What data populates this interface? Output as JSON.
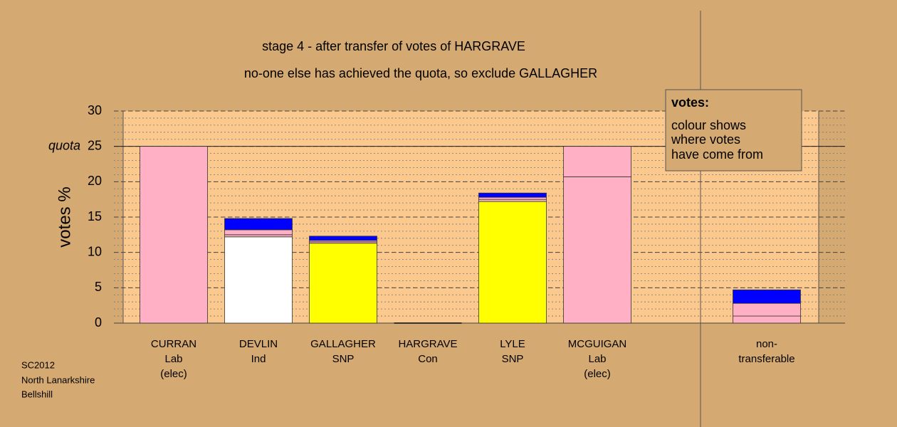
{
  "chart_data": {
    "type": "stacked_bar",
    "title": "stage 4 - after transfer of votes of HARGRAVE",
    "subtitle": "no-one else has achieved the quota, so exclude GALLAGHER",
    "y_label": "votes %",
    "categories": [
      [
        "CURRAN",
        "Lab",
        "(elec)"
      ],
      [
        "DEVLIN",
        "Ind"
      ],
      [
        "GALLAGHER",
        "SNP"
      ],
      [
        "HARGRAVE",
        "Con"
      ],
      [
        "LYLE",
        "SNP"
      ],
      [
        "MCGUIGAN",
        "Lab",
        "(elec)"
      ],
      null,
      [
        "non-",
        "transferable"
      ]
    ],
    "series": [
      {
        "colors": [
          "#ffb0c4",
          "#ffffff",
          "#ffff00",
          "#0000ff",
          "#ffff00",
          "#ffb0c4",
          null,
          "#ffb0c4"
        ],
        "values": [
          25,
          12.2,
          11.3,
          0,
          17.2,
          20.7,
          null,
          0
        ]
      },
      {
        "color": "#ffb0c4",
        "values": [
          0,
          0.3,
          0.2,
          0,
          0.3,
          4.3,
          null,
          1.0
        ]
      },
      {
        "color": "#ffb0c4",
        "values": [
          0,
          0.7,
          0.2,
          0,
          0.3,
          0,
          null,
          1.8
        ]
      },
      {
        "color": "#0000ff",
        "values": [
          0,
          1.6,
          0.6,
          0,
          0.6,
          0,
          null,
          1.9
        ]
      }
    ],
    "ylim": [
      0,
      30
    ],
    "yticks": [
      0,
      5,
      10,
      15,
      20,
      25,
      30
    ],
    "minor_grid_step": 1,
    "quota": {
      "label": "quota",
      "value": 25
    },
    "note": {
      "heading": "votes:",
      "lines": [
        "colour shows",
        "where votes",
        "have come from"
      ]
    },
    "footer": [
      "SC2012",
      "North Lanarkshire",
      "Bellshill"
    ]
  }
}
